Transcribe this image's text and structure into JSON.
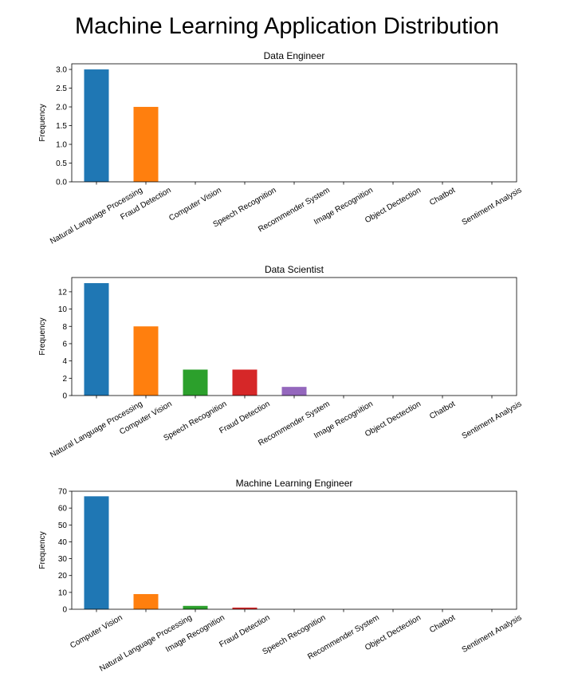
{
  "title": "Machine Learning Application Distribution",
  "colors": [
    "#1f77b4",
    "#ff7f0e",
    "#2ca02c",
    "#d62728",
    "#9467bd",
    "#8c564b",
    "#e377c2",
    "#7f7f7f",
    "#bcbd22"
  ],
  "chart_data": [
    {
      "type": "bar",
      "title": "Data Engineer",
      "xlabel": "",
      "ylabel": "Frequency",
      "categories": [
        "Natural Language Processing",
        "Fraud Detection",
        "Computer Vision",
        "Speech Recognition",
        "Recommender System",
        "Image Recognition",
        "Object Dectection",
        "Chatbot",
        "Sentiment Analysis"
      ],
      "values": [
        3,
        2,
        0,
        0,
        0,
        0,
        0,
        0,
        0
      ],
      "ylim": [
        0,
        3.15
      ],
      "yticks": [
        0,
        0.5,
        1,
        1.5,
        2,
        2.5,
        3
      ],
      "ytick_labels": [
        "0.0",
        "0.5",
        "1.0",
        "1.5",
        "2.0",
        "2.5",
        "3.0"
      ]
    },
    {
      "type": "bar",
      "title": "Data Scientist",
      "xlabel": "",
      "ylabel": "Frequency",
      "categories": [
        "Natural Language Processing",
        "Computer Vision",
        "Speech Recognition",
        "Fraud Detection",
        "Recommender System",
        "Image Recognition",
        "Object Dectection",
        "Chatbot",
        "Sentiment Analysis"
      ],
      "values": [
        13,
        8,
        3,
        3,
        1,
        0,
        0,
        0,
        0
      ],
      "ylim": [
        0,
        13.65
      ],
      "yticks": [
        0,
        2,
        4,
        6,
        8,
        10,
        12
      ],
      "ytick_labels": [
        "0",
        "2",
        "4",
        "6",
        "8",
        "10",
        "12"
      ]
    },
    {
      "type": "bar",
      "title": "Machine Learning Engineer",
      "xlabel": "",
      "ylabel": "Frequency",
      "categories": [
        "Computer Vision",
        "Natural Language Processing",
        "Image Recognition",
        "Fraud Detection",
        "Speech Recognition",
        "Recommender System",
        "Object Dectection",
        "Chatbot",
        "Sentiment Analysis"
      ],
      "values": [
        67,
        9,
        2,
        1,
        0,
        0,
        0,
        0,
        0
      ],
      "ylim": [
        0,
        70
      ],
      "yticks": [
        0,
        10,
        20,
        30,
        40,
        50,
        60,
        70
      ],
      "ytick_labels": [
        "0",
        "10",
        "20",
        "30",
        "40",
        "50",
        "60",
        "70"
      ]
    }
  ]
}
